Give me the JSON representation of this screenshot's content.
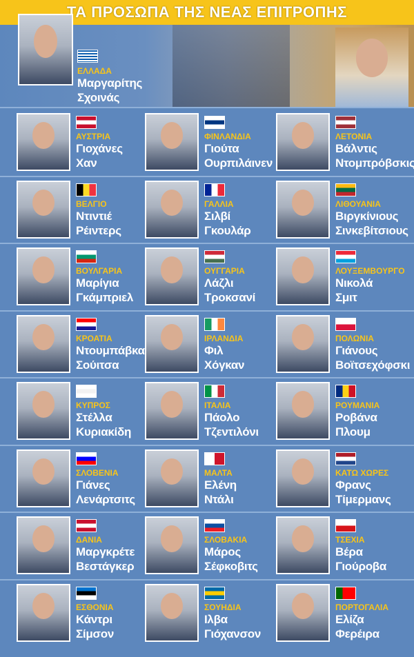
{
  "header": {
    "title": "ΤΑ ΠΡΟΣΩΠΑ ΤΗΣ ΝΕΑΣ ΕΠΙΤΡΟΠΗΣ"
  },
  "featured": {
    "country": "ΕΛΛΑΔΑ",
    "name": [
      "Μαργαρίτης",
      "Σχοινάς"
    ]
  },
  "people": [
    {
      "country": "ΑΥΣΤΡΙΑ",
      "name": [
        "Γιοχάνες",
        "Χαν"
      ]
    },
    {
      "country": "ΦΙΝΛΑΝΔΙΑ",
      "name": [
        "Γιούτα",
        "Ουρπιλάινεν"
      ]
    },
    {
      "country": "ΛΕΤΟΝΙΑ",
      "name": [
        "Βάλντις",
        "Ντομπρόβσκις"
      ]
    },
    {
      "country": "ΒΕΛΓΙΟ",
      "name": [
        "Ντιντιέ",
        "Ρέιντερς"
      ]
    },
    {
      "country": "ΓΑΛΛΙΑ",
      "name": [
        "Σιλβί",
        "Γκουλάρ"
      ]
    },
    {
      "country": "ΛΙΘΟΥΑΝΙΑ",
      "name": [
        "Βιργκίνιους",
        "Σινκεβίτσιους"
      ]
    },
    {
      "country": "ΒΟΥΛΓΑΡΙΑ",
      "name": [
        "Μαρίγια",
        "Γκάμπριελ"
      ]
    },
    {
      "country": "ΟΥΓΓΑΡΙΑ",
      "name": [
        "Λάζλι",
        "Τροκσανί"
      ]
    },
    {
      "country": "ΛΟΥΞΕΜΒΟΥΡΓΟ",
      "name": [
        "Νικολά",
        "Σμιτ"
      ]
    },
    {
      "country": "ΚΡΟΑΤΙΑ",
      "name": [
        "Ντουμπάβκα",
        "Σούιτσα"
      ]
    },
    {
      "country": "ΙΡΛΑΝΔΙΑ",
      "name": [
        "Φιλ",
        "Χόγκαν"
      ]
    },
    {
      "country": "ΠΟΛΩΝΙΑ",
      "name": [
        "Γιάνους",
        "Βοϊτσεχόφσκι"
      ]
    },
    {
      "country": "ΚΥΠΡΟΣ",
      "name": [
        "Στέλλα",
        "Κυριακίδη"
      ]
    },
    {
      "country": "ΙΤΑΛΙΑ",
      "name": [
        "Πάολο",
        "Τζεντιλόνι"
      ]
    },
    {
      "country": "ΡΟΥΜΑΝΙΑ",
      "name": [
        "Ροβάνα",
        "Πλουμ"
      ]
    },
    {
      "country": "ΣΛΟΒΕΝΙΑ",
      "name": [
        "Γιάνες",
        "Λενάρτσιτς"
      ]
    },
    {
      "country": "ΜΑΛΤΑ",
      "name": [
        "Ελένη",
        "Ντάλι"
      ]
    },
    {
      "country": "ΚΑΤΩ ΧΩΡΕΣ",
      "name": [
        "Φρανς",
        "Τίμερμανς"
      ]
    },
    {
      "country": "ΔΑΝΙΑ",
      "name": [
        "Μαργκρέτε",
        "Βεστάγκερ"
      ]
    },
    {
      "country": "ΣΛΟΒΑΚΙΑ",
      "name": [
        "Μάρος",
        "Σέφκοβιτς"
      ]
    },
    {
      "country": "ΤΣΕΧΙΑ",
      "name": [
        "Βέρα",
        "Γιούροβα"
      ]
    },
    {
      "country": "ΕΣΘΟΝΙΑ",
      "name": [
        "Κάντρι",
        "Σίμσον"
      ]
    },
    {
      "country": "ΣΟΥΗΔΙΑ",
      "name": [
        "Ιλβα",
        "Γιόχανσον"
      ]
    },
    {
      "country": "ΠΟΡΤΟΓΑΛΙΑ",
      "name": [
        "Ελίζα",
        "Φερέιρα"
      ]
    }
  ]
}
